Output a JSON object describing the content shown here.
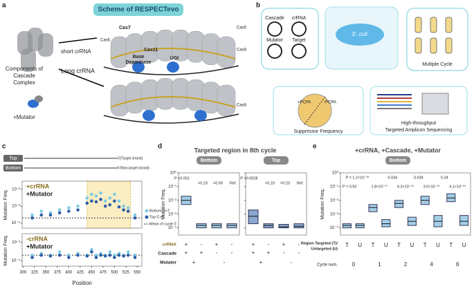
{
  "panel_labels": [
    "a",
    "b",
    "c",
    "d",
    "e"
  ],
  "a": {
    "title": "Scheme of RESPECTevo",
    "components": [
      "Components of",
      "Cascade",
      "Complex"
    ],
    "mutator": "+Mutator",
    "short": "short crRNA",
    "long": "Long crRNA",
    "cas7": "Cas7",
    "cas6": "Cas6",
    "cas5": "Cas5",
    "cas8": "Cas8",
    "cas11": "Cas11",
    "deaminase": [
      "Base",
      "Deaminase"
    ],
    "ugi": "UGI",
    "cas8b": "Cas8"
  },
  "b": {
    "plasmids": [
      "Cascade",
      "crRNA",
      "Mutator",
      "Target"
    ],
    "ecoli": "E. coli",
    "cycle": "Multiple Cycle",
    "pcpa_plus": "+PCPA",
    "pcpa_minus": "-PCPA",
    "suppressor": "Suppressor Frequency",
    "hts": [
      "High-throughput",
      "Targeted Amplicon Sequencing"
    ]
  },
  "c": {
    "top": "Top",
    "bottom": "Bottom",
    "target": "3'(Target strand)",
    "nontarget": "5'(Non-target strand)",
    "upper_label": [
      "+crRNA",
      "+Mutator"
    ],
    "lower_label": [
      "-crRNA",
      "+Mutator"
    ],
    "ylabel": "Mutation Freq.",
    "xlabel": "Position",
    "log": true,
    "xlim": [
      298,
      560
    ],
    "xticks": [
      300,
      325,
      350,
      375,
      400,
      425,
      450,
      475,
      500,
      525,
      550
    ],
    "ylim": [
      5e-05,
      0.03
    ],
    "yticks": [
      {
        "value": 0.01,
        "label": "10⁻²"
      },
      {
        "value": 0.001,
        "label": "10⁻³"
      },
      {
        "value": 0.0001,
        "label": "10⁻⁴"
      }
    ],
    "lower_ylim": [
      5e-05,
      0.003
    ],
    "lower_yticks": [
      {
        "value": 0.001,
        "label": "10⁻³"
      },
      {
        "value": 0.0001,
        "label": "10⁻⁴"
      }
    ],
    "highlight": [
      440,
      535
    ],
    "x": [
      320,
      340,
      360,
      380,
      400,
      420,
      440,
      450,
      460,
      470,
      480,
      490,
      500,
      510,
      520,
      530,
      545
    ],
    "series": [
      {
        "name": "Bottom C>T",
        "color": "#7ecbe4",
        "values": [
          0.0003,
          0.0005,
          0.0004,
          0.0006,
          0.0008,
          0.001,
          0.003,
          0.005,
          0.004,
          0.006,
          0.002,
          0.003,
          0.005,
          0.002,
          0.001,
          0.0008,
          0.0003
        ]
      },
      {
        "name": "Top C>T",
        "color": "#2c5ea8",
        "values": [
          0.0002,
          0.0003,
          0.0003,
          0.0004,
          0.0005,
          0.0006,
          0.0015,
          0.002,
          0.0018,
          0.0025,
          0.001,
          0.0012,
          0.002,
          0.0009,
          0.0006,
          0.0005,
          0.0002
        ]
      }
    ],
    "lower_series": [
      {
        "color": "#7ecbe4",
        "values": [
          0.0002,
          0.00025,
          0.0002,
          0.0003,
          0.0002,
          0.00025,
          0.0002,
          0.0004,
          0.0002,
          0.00025,
          0.0002,
          0.0003,
          0.0002,
          0.00025,
          0.0002,
          0.0003,
          0.0002
        ]
      },
      {
        "color": "#2c5ea8",
        "values": [
          0.00015,
          0.0002,
          0.00018,
          0.0002,
          0.00015,
          0.0002,
          0.00018,
          0.0003,
          0.00015,
          0.0002,
          0.00018,
          0.0002,
          0.00015,
          0.0002,
          0.00018,
          0.0002,
          0.00015
        ]
      }
    ],
    "mean_label": "Mean of cycle 0",
    "mean_value": 0.0002
  },
  "d": {
    "title": "Targeted region in 8th cycle",
    "ylabel": "Mutation Freq.",
    "log": true,
    "ylim": [
      3e-05,
      1
    ],
    "yticks": [
      {
        "value": 1,
        "label": "10⁰"
      },
      {
        "value": 0.1,
        "label": "10⁻¹"
      },
      {
        "value": 0.01,
        "label": "10⁻²"
      },
      {
        "value": 0.001,
        "label": "10⁻³"
      },
      {
        "value": 0.0001,
        "label": "10⁻⁴"
      }
    ],
    "row_labels": [
      "crRNA",
      "Cascade",
      "Mutator"
    ],
    "crRNA": [
      "+",
      "-",
      "+",
      "-"
    ],
    "cascade": [
      "+",
      "+",
      "-",
      "-"
    ],
    "mutator": [
      "+",
      "-"
    ],
    "panels": [
      {
        "badge": "Bottom",
        "p_labels": [
          "P <0.001",
          "=0.23",
          "=0.69",
          "Ref."
        ],
        "q1": [
          0.005,
          0.0001,
          0.0001,
          0.0001
        ],
        "median": [
          0.01,
          0.00015,
          0.00015,
          0.00015
        ],
        "q3": [
          0.02,
          0.0002,
          0.0002,
          0.0002
        ],
        "color": "#5aa7d6"
      },
      {
        "badge": "Top",
        "p_labels": [
          "P =0.0028",
          "=0.23",
          "=0.23",
          "Ref."
        ],
        "q1": [
          0.0002,
          0.0001,
          0.0001,
          0.0001
        ],
        "median": [
          0.0007,
          0.00015,
          0.00012,
          0.00013
        ],
        "q3": [
          0.002,
          0.0002,
          0.00018,
          0.0002
        ],
        "color": "#2c5ea8"
      }
    ]
  },
  "e": {
    "title": "+crRNA, +Cascade, +Mutator",
    "badge": "Bottom",
    "ylabel": "Mutation Freq.",
    "log": true,
    "ylim": [
      3e-05,
      1
    ],
    "yticks": [
      {
        "value": 1,
        "label": "10⁰"
      },
      {
        "value": 0.1,
        "label": "10⁻¹"
      },
      {
        "value": 0.01,
        "label": "10⁻²"
      },
      {
        "value": 0.001,
        "label": "10⁻³"
      },
      {
        "value": 0.0001,
        "label": "10⁻⁴"
      }
    ],
    "p_row1": [
      "P = 1.2×10⁻¹⁰",
      "0.034",
      "0.034",
      "0.24"
    ],
    "p_row2": [
      "P = 0.92",
      "1.8×10⁻¹⁷",
      "6.3×10⁻¹⁹",
      "3.0×10⁻¹⁵",
      "4.1×10⁻²⁴"
    ],
    "categories": [
      "T",
      "U",
      "T",
      "U",
      "T",
      "U",
      "T",
      "U",
      "T",
      "U"
    ],
    "q1": [
      0.0001,
      0.0001,
      0.0015,
      0.00012,
      0.003,
      0.00015,
      0.005,
      0.00012,
      0.008,
      0.00015
    ],
    "median": [
      0.00015,
      0.00015,
      0.003,
      0.0002,
      0.006,
      0.0003,
      0.01,
      0.0003,
      0.015,
      0.0003
    ],
    "q3": [
      0.0002,
      0.0002,
      0.005,
      0.0004,
      0.01,
      0.0006,
      0.02,
      0.0008,
      0.03,
      0.0008
    ],
    "colors": [
      "#5aa7d6",
      "#5aa7d6"
    ],
    "region_label": [
      "Region Targeted (T)/",
      "Untargeted (U)"
    ],
    "cycle_label": "Cycle num.",
    "cycles": [
      "0",
      "1",
      "2",
      "4",
      "6"
    ]
  }
}
